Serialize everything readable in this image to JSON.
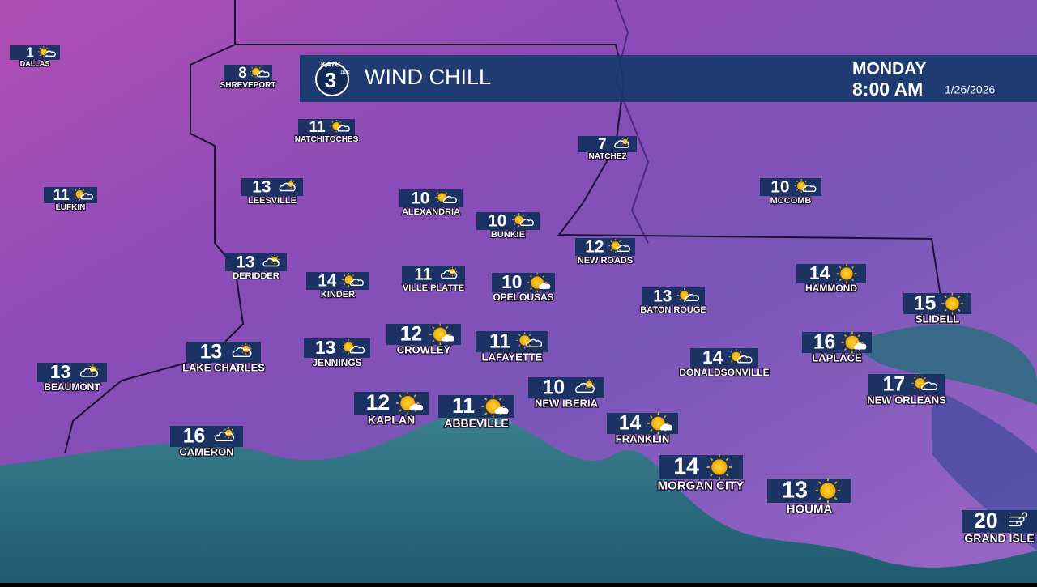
{
  "header": {
    "logo": {
      "station": "KATC",
      "channel": "3",
      "network": "abc"
    },
    "title": "WIND CHILL",
    "day": "MONDAY",
    "time": "8:00 AM",
    "date": "1/26/2026"
  },
  "cities": [
    {
      "name": "DALLAS",
      "value": 1
    },
    {
      "name": "SHREVEPORT",
      "value": 8
    },
    {
      "name": "NATCHITOCHES",
      "value": 11
    },
    {
      "name": "NATCHEZ",
      "value": 7
    },
    {
      "name": "LUFKIN",
      "value": 11
    },
    {
      "name": "LEESVILLE",
      "value": 13
    },
    {
      "name": "ALEXANDRIA",
      "value": 10
    },
    {
      "name": "BUNKIE",
      "value": 10
    },
    {
      "name": "MCCOMB",
      "value": 10
    },
    {
      "name": "NEW ROADS",
      "value": 12
    },
    {
      "name": "DERIDDER",
      "value": 13
    },
    {
      "name": "KINDER",
      "value": 14
    },
    {
      "name": "VILLE PLATTE",
      "value": 11
    },
    {
      "name": "OPELOUSAS",
      "value": 10
    },
    {
      "name": "BATON ROUGE",
      "value": 13
    },
    {
      "name": "HAMMOND",
      "value": 14
    },
    {
      "name": "SLIDELL",
      "value": 15
    },
    {
      "name": "CROWLEY",
      "value": 12
    },
    {
      "name": "LAFAYETTE",
      "value": 11
    },
    {
      "name": "LAKE CHARLES",
      "value": 13
    },
    {
      "name": "JENNINGS",
      "value": 13
    },
    {
      "name": "BEAUMONT",
      "value": 13
    },
    {
      "name": "DONALDSONVILLE",
      "value": 14
    },
    {
      "name": "LAPLACE",
      "value": 16
    },
    {
      "name": "NEW ORLEANS",
      "value": 17
    },
    {
      "name": "NEW IBERIA",
      "value": 10
    },
    {
      "name": "KAPLAN",
      "value": 12
    },
    {
      "name": "ABBEVILLE",
      "value": 11
    },
    {
      "name": "FRANKLIN",
      "value": 14
    },
    {
      "name": "CAMERON",
      "value": 16
    },
    {
      "name": "MORGAN CITY",
      "value": 14
    },
    {
      "name": "HOUMA",
      "value": 13
    },
    {
      "name": "GRAND ISLE",
      "value": 20
    }
  ]
}
